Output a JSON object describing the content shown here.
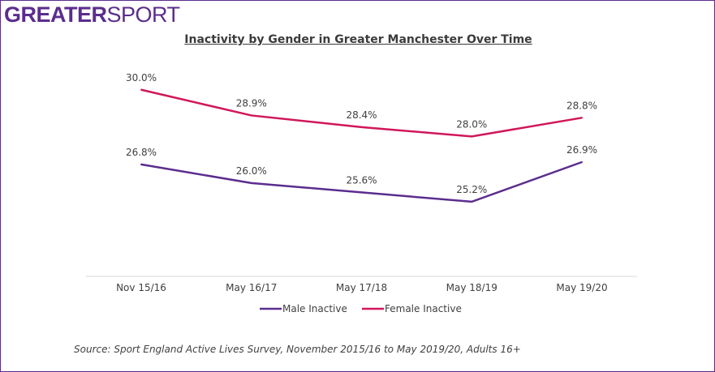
{
  "logo": {
    "bold": "GREATER",
    "light": "SPORT"
  },
  "source": "Source: Sport England Active Lives Survey, November 2015/16 to May 2019/20, Adults 16+",
  "chart_data": {
    "type": "line",
    "title": "Inactivity by Gender in Greater Manchester Over Time",
    "categories": [
      "Nov 15/16",
      "May 16/17",
      "May 17/18",
      "May 18/19",
      "May 19/20"
    ],
    "series": [
      {
        "name": "Male Inactive",
        "color": "#5b2d8e",
        "values": [
          26.8,
          26.0,
          25.6,
          25.2,
          26.9
        ],
        "labels": [
          "26.8%",
          "26.0%",
          "25.6%",
          "25.2%",
          "26.9%"
        ]
      },
      {
        "name": "Female Inactive",
        "color": "#d0175a",
        "values": [
          30.0,
          28.9,
          28.4,
          28.0,
          28.8
        ],
        "labels": [
          "30.0%",
          "28.9%",
          "28.4%",
          "28.0%",
          "28.8%"
        ]
      }
    ],
    "ylim": [
      22,
      31
    ],
    "grid": false,
    "legend": "bottom"
  }
}
